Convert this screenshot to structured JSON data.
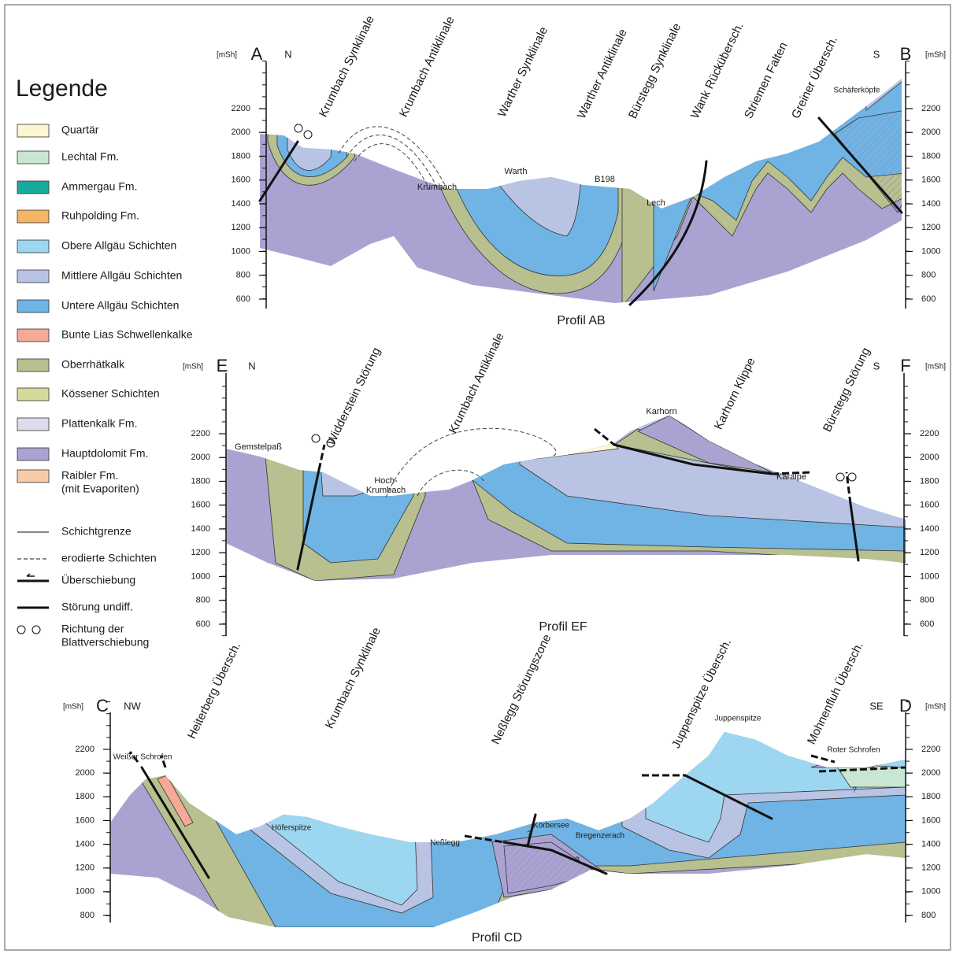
{
  "legend": {
    "title": "Legende",
    "units": [
      {
        "label": [
          "Quartär"
        ],
        "color": "#fdf6d3"
      },
      {
        "label": [
          "Lechtal Fm."
        ],
        "color": "#c9e6d2"
      },
      {
        "label": [
          "Ammergau Fm."
        ],
        "color": "#19aa9e"
      },
      {
        "label": [
          "Ruhpolding Fm."
        ],
        "color": "#f4b565"
      },
      {
        "label": [
          "Obere Allgäu Schichten"
        ],
        "color": "#9dd6f0"
      },
      {
        "label": [
          "Mittlere Allgäu Schichten"
        ],
        "color": "#b9c4e4"
      },
      {
        "label": [
          "Untere Allgäu Schichten"
        ],
        "color": "#6fb4e4"
      },
      {
        "label": [
          "Bunte Lias Schwellenkalke"
        ],
        "color": "#f5a996"
      },
      {
        "label": [
          "Oberrhätkalk"
        ],
        "color": "#b7c08e"
      },
      {
        "label": [
          "Kössener Schichten"
        ],
        "color": "#d3da9c"
      },
      {
        "label": [
          "Plattenkalk Fm."
        ],
        "color": "#dcdcec"
      },
      {
        "label": [
          "Hauptdolomit Fm."
        ],
        "color": "#aaa3d2"
      },
      {
        "label": [
          "Raibler Fm.",
          "(mit Evaporiten)"
        ],
        "color": "#f7caa8"
      }
    ],
    "symbols": [
      {
        "label": [
          "Schichtgrenze"
        ]
      },
      {
        "label": [
          "erodierte Schichten"
        ]
      },
      {
        "label": [
          "Überschiebung"
        ]
      },
      {
        "label": [
          "Störung undiff."
        ]
      },
      {
        "label": [
          "Richtung der",
          "Blattverschiebung"
        ]
      }
    ]
  },
  "profiles": [
    {
      "name": "Profil AB",
      "unit": "[mSh]",
      "ends": [
        "A",
        "B"
      ],
      "directions": [
        "N",
        "S"
      ],
      "elevations": [
        600,
        800,
        1000,
        1200,
        1400,
        1600,
        1800,
        2000,
        2200
      ],
      "structures": [
        "Krumbach Synklinale",
        "Krumbach Antiklinale",
        "Warther Synklinale",
        "Warther Antiklinale",
        "Bürstegg Synklinale",
        "Wank Rückübersch.",
        "Striemen Falten",
        "Greiner Übersch."
      ],
      "places": [
        "Krumbach",
        "Warth",
        "B198",
        "Lech",
        "Schäferköpfe"
      ]
    },
    {
      "name": "Profil EF",
      "unit": "[mSh]",
      "ends": [
        "E",
        "F"
      ],
      "directions": [
        "N",
        "S"
      ],
      "elevations": [
        600,
        800,
        1000,
        1200,
        1400,
        1600,
        1800,
        2000,
        2200
      ],
      "structures": [
        "Widderstein Störung",
        "Krumbach Antiklinale",
        "Karhorn Klippe",
        "Bürstegg Störung"
      ],
      "places": [
        "Gemstelpaß",
        "Hoch-",
        "Krumbach",
        "Karhorn",
        "Karalpe"
      ]
    },
    {
      "name": "Profil CD",
      "unit": "[mSh]",
      "ends": [
        "C",
        "D"
      ],
      "directions": [
        "NW",
        "SE"
      ],
      "elevations": [
        800,
        1000,
        1200,
        1400,
        1600,
        1800,
        2000,
        2200
      ],
      "structures": [
        "Heiterberg Übersch.",
        "Krumbach Synklinale",
        "Neßlegg Störungszone",
        "Juppenspitze Übersch.",
        "Mohnenfluh Übersch."
      ],
      "places": [
        "Weißer Schrofen",
        "Höferspitze",
        "Körbersee",
        "Bregenzerach",
        "Neßlegg",
        "Juppenspitze",
        "Roter Schrofen",
        "?",
        "?",
        "?"
      ]
    }
  ]
}
